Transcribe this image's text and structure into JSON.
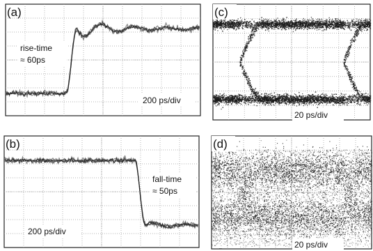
{
  "figure": {
    "panels": [
      {
        "id": "a",
        "label": "(a)",
        "annotations": [
          "rise-time",
          "≈ 60ps"
        ],
        "scale": "200 ps/div"
      },
      {
        "id": "b",
        "label": "(b)",
        "annotations": [
          "fall-time",
          "≈ 50ps"
        ],
        "scale": "200 ps/div"
      },
      {
        "id": "c",
        "label": "(c)",
        "annotations": [],
        "scale": "20 ps/div"
      },
      {
        "id": "d",
        "label": "(d)",
        "annotations": [],
        "scale": "20 ps/div"
      }
    ]
  },
  "chart_data": [
    {
      "type": "line",
      "title": "",
      "plot": "oscilloscope step response (rising edge)",
      "x_unit_per_div": "200 ps/div",
      "x_divisions": 10,
      "y_divisions": 8,
      "grid": true,
      "series": [
        {
          "levels": {
            "low": 0.0,
            "high": 1.0
          },
          "edge": "rise",
          "edge_position_div": 3.1,
          "transition_ps": 60,
          "ringing_after_edge": true
        }
      ],
      "annotations": [
        "rise-time",
        "≈ 60ps"
      ]
    },
    {
      "type": "line",
      "title": "",
      "plot": "oscilloscope step response (falling edge)",
      "x_unit_per_div": "200 ps/div",
      "x_divisions": 10,
      "y_divisions": 8,
      "grid": true,
      "series": [
        {
          "levels": {
            "low": 0.0,
            "high": 1.0
          },
          "edge": "fall",
          "edge_position_div": 6.7,
          "transition_ps": 50,
          "ringing_after_edge": true
        }
      ],
      "annotations": [
        "fall-time",
        "≈ 50ps"
      ]
    },
    {
      "type": "scatter",
      "title": "",
      "plot": "eye diagram (clean)",
      "x_unit_per_div": "20 ps/div",
      "x_divisions": 10,
      "y_divisions": 8,
      "grid": true,
      "eye": {
        "crossings_div": [
          1.7,
          8.3
        ],
        "noise": "low"
      }
    },
    {
      "type": "scatter",
      "title": "",
      "plot": "eye diagram (noisy)",
      "x_unit_per_div": "20 ps/div",
      "x_divisions": 10,
      "y_divisions": 8,
      "grid": true,
      "eye": {
        "crossings_div": [
          1.7,
          8.3
        ],
        "noise": "high"
      }
    }
  ],
  "style": {
    "trace_color": "#1a1a1a",
    "grid_color": "#9a9a9a",
    "frame_color": "#222222",
    "label_bg": "#ffffff"
  }
}
